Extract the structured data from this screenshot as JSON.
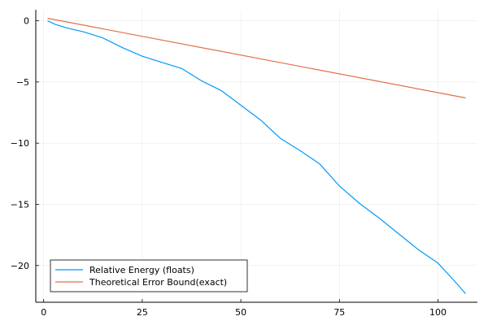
{
  "chart_data": {
    "type": "line",
    "title": "",
    "xlabel": "",
    "ylabel": "",
    "xlim": [
      -2,
      110
    ],
    "ylim": [
      -23,
      0.9
    ],
    "xticks": [
      0,
      25,
      50,
      75,
      100
    ],
    "xtick_labels": [
      "0",
      "25",
      "50",
      "75",
      "100"
    ],
    "yticks": [
      0,
      -5,
      -10,
      -15,
      -20
    ],
    "ytick_labels": [
      "0",
      "−5",
      "−10",
      "−15",
      "−20"
    ],
    "grid": true,
    "legend_position": "bottom-left",
    "series": [
      {
        "name": "Relative Energy (floats)",
        "color": "#009af9",
        "x": [
          1,
          3,
          6,
          10,
          15,
          20,
          25,
          30,
          35,
          40,
          45,
          50,
          55,
          60,
          65,
          70,
          75,
          80,
          85,
          90,
          95,
          100,
          104,
          107
        ],
        "y": [
          0,
          -0.3,
          -0.6,
          -0.9,
          -1.4,
          -2.2,
          -2.9,
          -3.4,
          -3.9,
          -4.9,
          -5.7,
          -6.9,
          -8.1,
          -9.6,
          -10.6,
          -11.7,
          -13.5,
          -14.9,
          -16.1,
          -17.4,
          -18.7,
          -19.8,
          -21.2,
          -22.3
        ]
      },
      {
        "name": "Theoretical Error Bound(exact)",
        "color": "#e26f46",
        "x": [
          1,
          107
        ],
        "y": [
          0.2,
          -6.3
        ]
      }
    ]
  }
}
